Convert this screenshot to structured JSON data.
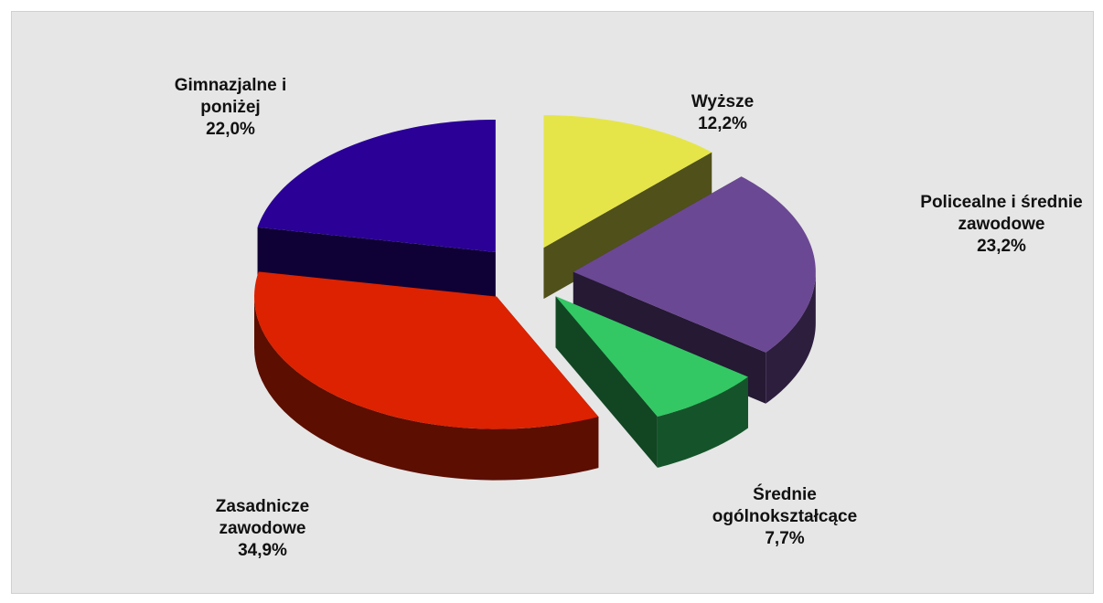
{
  "chart_data": {
    "type": "pie",
    "categories": [
      "Wyższe",
      "Policealne i średnie zawodowe",
      "Średnie ogólnokształcące",
      "Zasadnicze zawodowe",
      "Gimnazjalne i poniżej"
    ],
    "values": [
      12.2,
      23.2,
      7.7,
      34.9,
      22.0
    ],
    "value_labels": [
      "12,2%",
      "23,2%",
      "7,7%",
      "34,9%",
      "22,0%"
    ],
    "colors": [
      "#e5e54a",
      "#6b4893",
      "#33c864",
      "#dc2200",
      "#2a0096"
    ]
  }
}
